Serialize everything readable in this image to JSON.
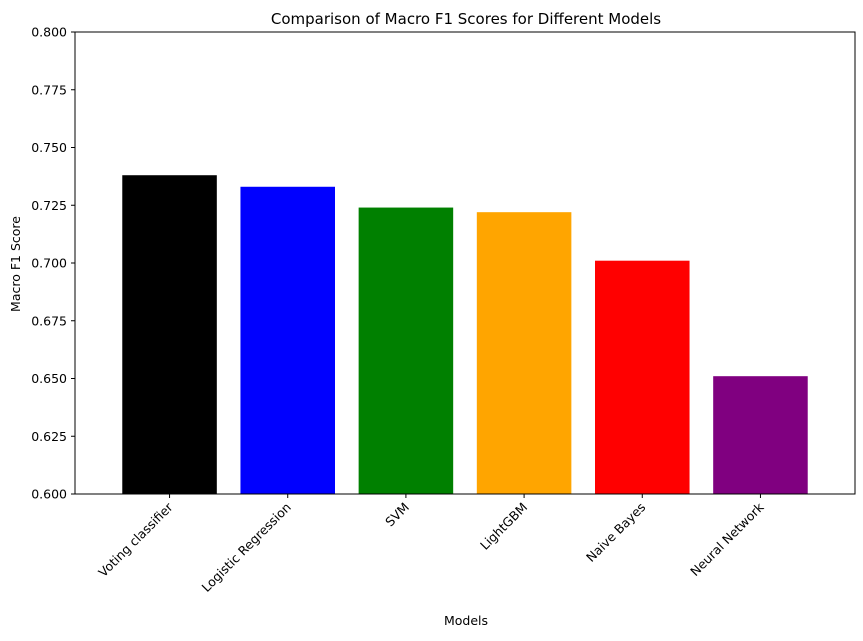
{
  "chart_data": {
    "type": "bar",
    "title": "Comparison of Macro F1 Scores for Different Models",
    "xlabel": "Models",
    "ylabel": "Macro F1 Score",
    "ylim": [
      0.6,
      0.8
    ],
    "yticks": [
      "0.600",
      "0.625",
      "0.650",
      "0.675",
      "0.700",
      "0.725",
      "0.750",
      "0.775",
      "0.800"
    ],
    "categories": [
      "Voting classifier",
      "Logistic Regression",
      "SVM",
      "LightGBM",
      "Naive Bayes",
      "Neural Network"
    ],
    "values": [
      0.738,
      0.733,
      0.724,
      0.722,
      0.701,
      0.651
    ],
    "colors": [
      "#000000",
      "#0000ff",
      "#008000",
      "#ffa500",
      "#ff0000",
      "#800080"
    ],
    "grid": false,
    "legend": "none"
  }
}
